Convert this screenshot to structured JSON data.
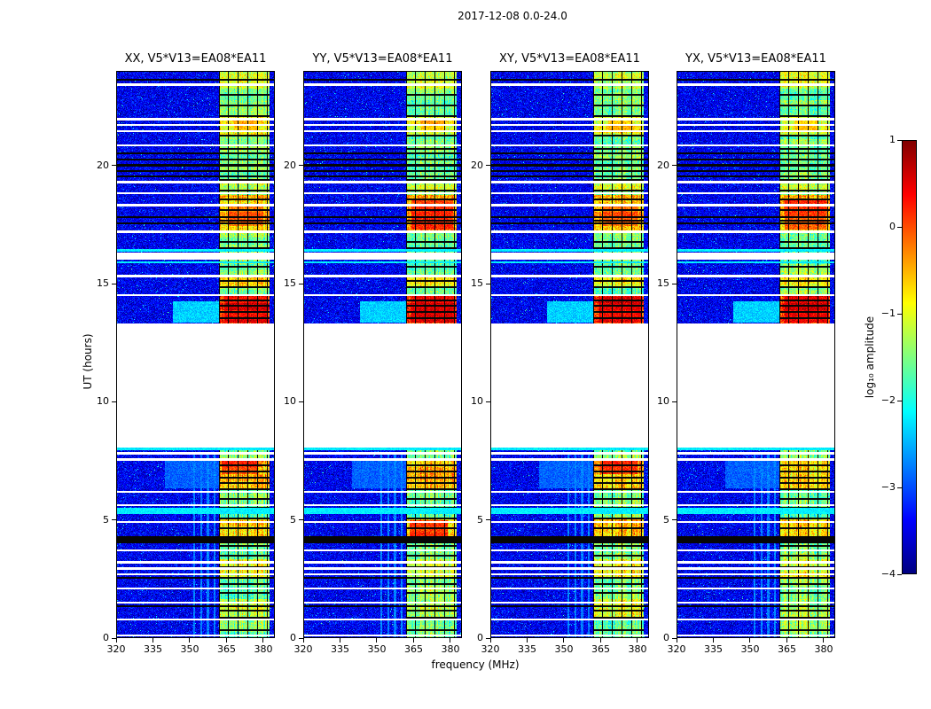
{
  "chart_data": {
    "type": "heatmap",
    "title": "2017-12-08 0.0-24.0",
    "xlabel": "frequency (MHz)",
    "ylabel": "UT (hours)",
    "colorbar_label": "log₁₀ amplitude",
    "colormap": "jet",
    "panels": [
      "XX, V5*V13=EA08*EA11",
      "YY, V5*V13=EA08*EA11",
      "XY, V5*V13=EA08*EA11",
      "YX, V5*V13=EA08*EA11"
    ],
    "x_range_mhz": [
      320,
      384.7
    ],
    "t_range_hours": [
      0,
      24
    ],
    "z_range_log10_amp": [
      -4,
      1
    ],
    "x_ticks": [
      320,
      335,
      350,
      365,
      380
    ],
    "y_ticks": [
      0,
      5,
      10,
      15,
      20
    ],
    "colorbar_ticks": [
      1,
      0,
      -1,
      -2,
      -3,
      -4
    ],
    "colorbar_tick_labels": [
      "1",
      "0",
      "−1",
      "−2",
      "−3",
      "−4"
    ],
    "data_gap_hours": [
      8.05,
      13.3
    ],
    "noise_floor": -3.45,
    "noise_sigma": 0.25,
    "rfi_band": {
      "f0": 361.8,
      "f1": 382.6,
      "base_level": -1.55,
      "subband_edges": [
        362.0,
        365.9,
        369.8,
        373.7,
        377.6,
        381.5
      ]
    },
    "band_envelope": [
      [
        23.25,
        24.0,
        -1.15
      ],
      [
        21.25,
        22.1,
        -0.95
      ],
      [
        18.95,
        19.4,
        -1.2
      ],
      [
        17.15,
        18.75,
        -0.5
      ],
      [
        14.85,
        15.35,
        -0.85
      ],
      [
        13.3,
        14.55,
        0.1
      ],
      [
        6.3,
        7.55,
        -0.55
      ],
      [
        4.25,
        5.05,
        -0.6
      ],
      [
        2.55,
        3.35,
        -1.05
      ],
      [
        0.85,
        1.65,
        -1.2
      ]
    ],
    "hot_blocks": [
      [
        13.35,
        14.5,
        364,
        381.5,
        0.45
      ],
      [
        17.45,
        18.35,
        366,
        380,
        -0.1
      ],
      [
        21.4,
        21.9,
        368,
        378,
        -0.55
      ]
    ],
    "panel_hot_blocks": [
      [
        [
          6.95,
          7.5,
          363,
          378,
          0.1
        ]
      ],
      [
        [
          4.3,
          5.0,
          363.5,
          379,
          0.2
        ],
        [
          17.3,
          18.6,
          364,
          381,
          0.1
        ]
      ],
      [
        [
          6.95,
          7.5,
          365,
          380,
          0.05
        ]
      ],
      [
        [
          13.6,
          14.45,
          364,
          382,
          0.5
        ],
        [
          17.3,
          18.6,
          364,
          381,
          0.05
        ]
      ]
    ],
    "flagged_rows_white": [
      23.42,
      21.95,
      21.72,
      21.45,
      20.85,
      19.3,
      18.82,
      18.32,
      17.2,
      15.32,
      14.52,
      7.82,
      7.55,
      6.18,
      5.62,
      4.92,
      3.72,
      3.2,
      2.95,
      2.7,
      2.1,
      1.5,
      0.78,
      0.12
    ],
    "wide_white_rows": [
      [
        16.02,
        16.3
      ]
    ],
    "black_rows": [
      23.62,
      20.52,
      20.25,
      20.0,
      19.77,
      19.54,
      17.82,
      17.55,
      2.55,
      1.35
    ],
    "wide_black_rows": [
      [
        4.02,
        4.3
      ]
    ],
    "cyan_rows": [
      [
        5.25,
        5.5
      ],
      [
        7.95,
        8.05
      ],
      [
        16.36,
        16.46
      ],
      [
        15.85,
        15.93
      ]
    ],
    "band_grid_rows": [
      23.0,
      22.55,
      22.1,
      21.25,
      20.7,
      19.4,
      18.95,
      18.55,
      18.1,
      17.65,
      16.75,
      16.5,
      15.7,
      15.1,
      14.85,
      14.3,
      14.05,
      13.8,
      13.55,
      7.3,
      7.05,
      6.8,
      6.55,
      6.3,
      5.9,
      5.5,
      5.05,
      4.65,
      3.9,
      3.5,
      3.0,
      2.3,
      1.9,
      1.15,
      0.85,
      0.35
    ],
    "low_level_features": [
      [
        13.35,
        14.25,
        343,
        361.8,
        -2.35
      ],
      [
        6.35,
        7.55,
        340,
        361.8,
        -2.9
      ],
      [
        0.0,
        7.8,
        351.4,
        352.2,
        -2.75
      ],
      [
        0.0,
        7.8,
        354.2,
        355.0,
        -2.75
      ],
      [
        0.0,
        7.8,
        357.0,
        357.8,
        -2.75
      ],
      [
        0.0,
        7.8,
        359.8,
        360.6,
        -2.75
      ]
    ]
  }
}
